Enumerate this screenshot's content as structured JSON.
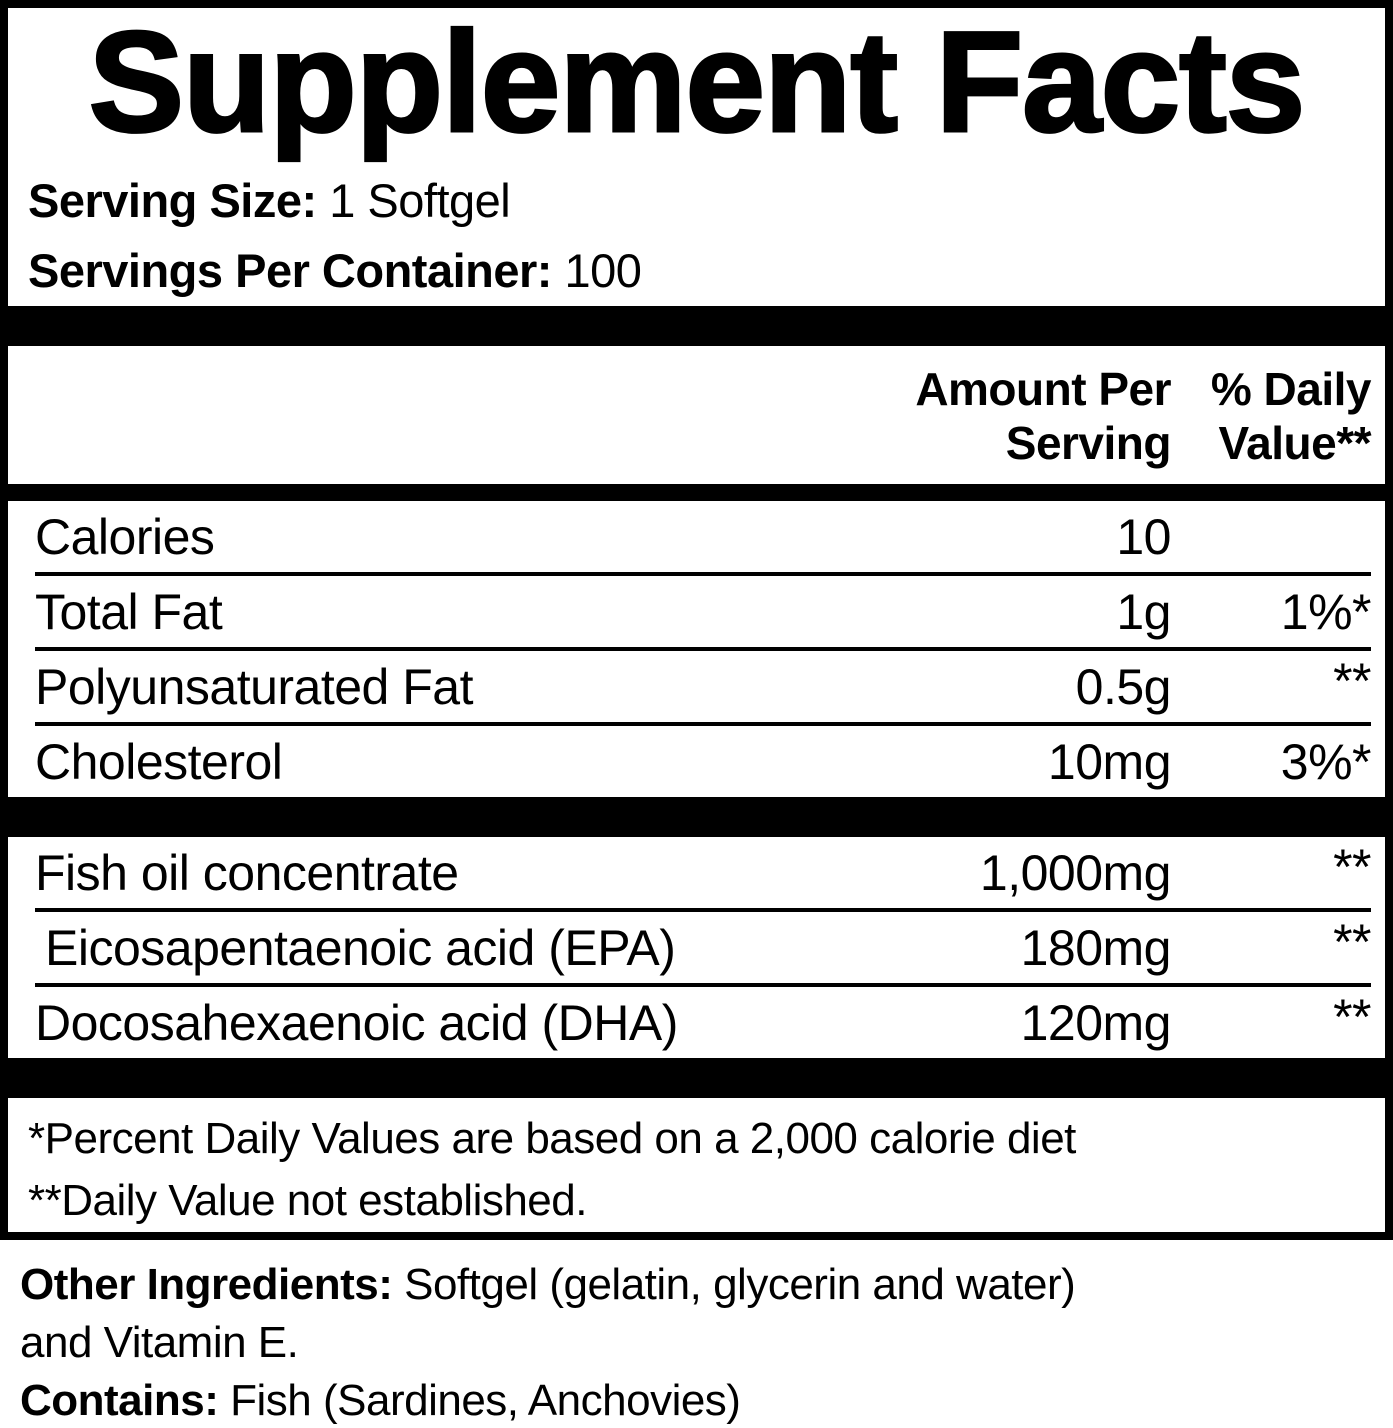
{
  "colors": {
    "ink": "#000000",
    "paper": "#ffffff"
  },
  "title": "Supplement Facts",
  "serving": {
    "size_label": "Serving Size:",
    "size_value": "1 Softgel",
    "container_label": "Servings Per Container:",
    "container_value": "100"
  },
  "columns": {
    "amount_line1": "Amount Per",
    "amount_line2": "Serving",
    "dv_line1": "% Daily",
    "dv_line2": "Value**"
  },
  "table": {
    "rows": [
      {
        "name": "Calories",
        "amount": "10",
        "dv": ""
      },
      {
        "name": "Total Fat",
        "amount": "1g",
        "dv": "1%*"
      },
      {
        "name": "Polyunsaturated Fat",
        "amount": "0.5g",
        "dv": "**"
      },
      {
        "name": "Cholesterol",
        "amount": "10mg",
        "dv": "3%*"
      },
      {
        "name": "Fish oil concentrate",
        "amount": "1,000mg",
        "dv": "**"
      },
      {
        "name": "Eicosapentaenoic acid (EPA)",
        "amount": "180mg",
        "dv": "**"
      },
      {
        "name": "Docosahexaenoic acid (DHA)",
        "amount": "120mg",
        "dv": "**"
      }
    ]
  },
  "footnotes": {
    "line1": "*Percent Daily Values are based on a 2,000 calorie diet",
    "line2": "**Daily Value not established."
  },
  "other": {
    "ingredients_label": "Other Ingredients:",
    "ingredients_value": "Softgel (gelatin, glycerin and water)",
    "ingredients_continuation": "and Vitamin E.",
    "contains_label": "Contains:",
    "contains_value": "Fish (Sardines, Anchovies)"
  }
}
